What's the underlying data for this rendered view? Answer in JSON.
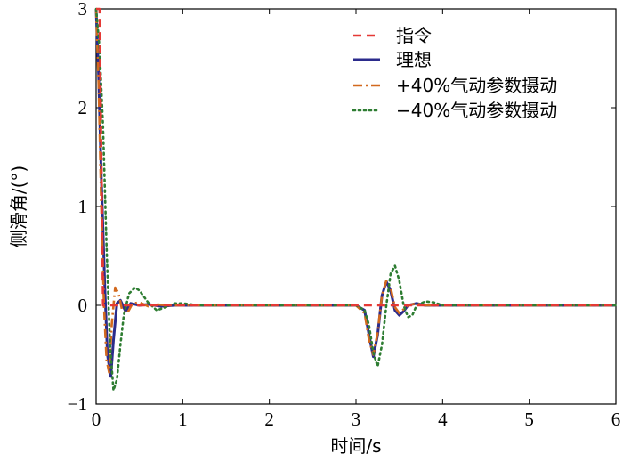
{
  "chart_data": {
    "type": "line",
    "xlabel": "时间/s",
    "ylabel": "侧滑角/(°)",
    "xlim": [
      0,
      6
    ],
    "ylim": [
      -1,
      3
    ],
    "xticks": [
      "0",
      "1",
      "2",
      "3",
      "4",
      "5",
      "6"
    ],
    "yticks": [
      "−1",
      "0",
      "1",
      "2",
      "3"
    ],
    "grid": false,
    "legend_position": "top-right",
    "series": [
      {
        "name": "指令",
        "style": "dashed",
        "color": "#e53935",
        "x": [
          0,
          0.04,
          0.08,
          3.12,
          3.16,
          6
        ],
        "y": [
          3,
          3,
          0,
          0,
          0,
          0
        ]
      },
      {
        "name": "理想",
        "style": "solid",
        "color": "#2b2b8c",
        "x": [
          0,
          0.03,
          0.06,
          0.1,
          0.13,
          0.17,
          0.2,
          0.24,
          0.28,
          0.34,
          0.4,
          0.5,
          0.6,
          0.75,
          0.9,
          1.1,
          1.5,
          2.0,
          3.0,
          3.1,
          3.15,
          3.2,
          3.25,
          3.3,
          3.35,
          3.4,
          3.45,
          3.5,
          3.55,
          3.6,
          3.7,
          3.8,
          4.0,
          5.0,
          6.0
        ],
        "y": [
          3.0,
          2.3,
          1.3,
          0.2,
          -0.5,
          -0.72,
          -0.35,
          0.02,
          0.05,
          -0.06,
          0.02,
          0.0,
          0.01,
          -0.01,
          0.0,
          0.0,
          0.0,
          0.0,
          0.0,
          -0.05,
          -0.3,
          -0.52,
          -0.3,
          0.1,
          0.24,
          0.15,
          -0.05,
          -0.1,
          -0.06,
          0.0,
          0.02,
          0.0,
          0.0,
          0.0,
          0.0
        ]
      },
      {
        "name": "+40%气动参数摄动",
        "style": "dashdot",
        "color": "#d2691e",
        "x": [
          0,
          0.03,
          0.06,
          0.09,
          0.12,
          0.15,
          0.18,
          0.22,
          0.26,
          0.3,
          0.36,
          0.42,
          0.5,
          0.6,
          0.7,
          0.8,
          1.0,
          1.5,
          2.0,
          3.0,
          3.1,
          3.15,
          3.2,
          3.25,
          3.3,
          3.35,
          3.4,
          3.45,
          3.5,
          3.55,
          3.6,
          3.7,
          3.8,
          4.0,
          5.0,
          6.0
        ],
        "y": [
          3.0,
          2.2,
          1.0,
          0.0,
          -0.55,
          -0.68,
          -0.2,
          0.18,
          0.12,
          -0.05,
          -0.08,
          0.02,
          0.03,
          -0.01,
          0.01,
          0.0,
          0.0,
          0.0,
          0.0,
          0.0,
          -0.08,
          -0.35,
          -0.5,
          -0.28,
          0.1,
          0.25,
          0.18,
          -0.02,
          -0.08,
          -0.04,
          0.0,
          0.02,
          0.0,
          0.0,
          0.0,
          0.0
        ]
      },
      {
        "name": "−40%气动参数摄动",
        "style": "dotted",
        "color": "#2e7d32",
        "x": [
          0,
          0.04,
          0.08,
          0.12,
          0.16,
          0.2,
          0.24,
          0.28,
          0.32,
          0.38,
          0.45,
          0.5,
          0.6,
          0.7,
          0.8,
          0.9,
          1.0,
          1.2,
          1.5,
          2.0,
          3.0,
          3.1,
          3.15,
          3.2,
          3.25,
          3.3,
          3.35,
          3.4,
          3.45,
          3.5,
          3.55,
          3.6,
          3.65,
          3.7,
          3.8,
          3.9,
          4.0,
          5.0,
          6.0
        ],
        "y": [
          3.0,
          2.6,
          1.8,
          0.6,
          -0.4,
          -0.86,
          -0.75,
          -0.4,
          -0.1,
          0.12,
          0.18,
          0.15,
          0.03,
          -0.05,
          -0.02,
          0.02,
          0.02,
          0.0,
          0.0,
          0.0,
          0.0,
          -0.05,
          -0.2,
          -0.48,
          -0.62,
          -0.4,
          0.0,
          0.32,
          0.4,
          0.25,
          0.0,
          -0.12,
          -0.1,
          0.0,
          0.04,
          0.03,
          0.0,
          0.0,
          0.0
        ]
      }
    ]
  }
}
